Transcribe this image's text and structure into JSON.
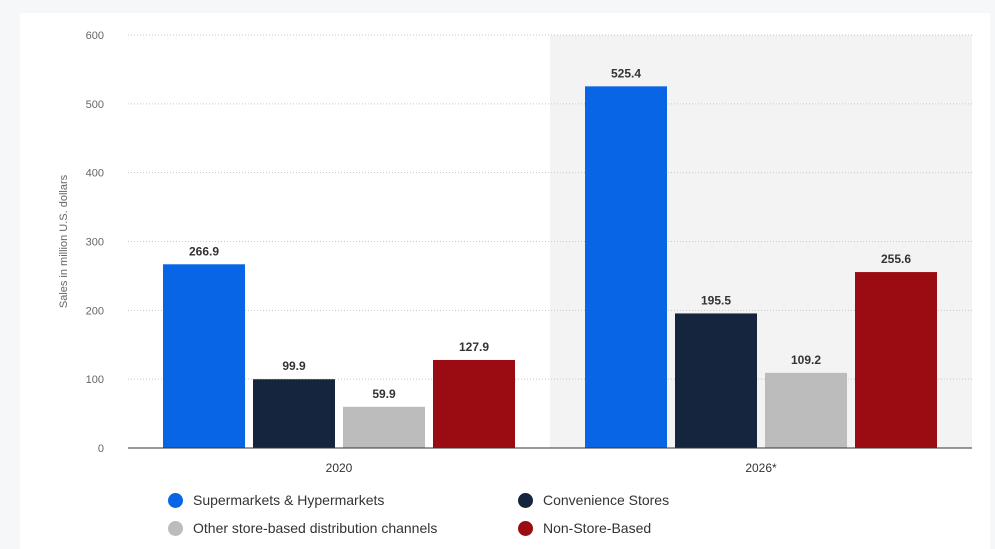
{
  "chart_data": {
    "type": "bar",
    "ylabel": "Sales in million U.S. dollars",
    "ylim": [
      0,
      600
    ],
    "yticks": [
      "0",
      "100",
      "200",
      "300",
      "400",
      "500",
      "600"
    ],
    "categories": [
      "2020",
      "2026*"
    ],
    "highlighted_category": "2026*",
    "grid": true,
    "legend_position": "bottom",
    "series": [
      {
        "name": "Supermarkets & Hypermarkets",
        "color": "#0866e6",
        "values": [
          266.9,
          525.4
        ],
        "labels": [
          "266.9",
          "525.4"
        ]
      },
      {
        "name": "Convenience Stores",
        "color": "#14253d",
        "values": [
          99.9,
          195.5
        ],
        "labels": [
          "99.9",
          "195.5"
        ]
      },
      {
        "name": "Other store-based distribution channels",
        "color": "#bcbcbc",
        "values": [
          59.9,
          109.2
        ],
        "labels": [
          "59.9",
          "109.2"
        ]
      },
      {
        "name": "Non-Store-Based",
        "color": "#9b0c12",
        "values": [
          127.9,
          255.6
        ],
        "labels": [
          "127.9",
          "255.6"
        ]
      }
    ]
  }
}
